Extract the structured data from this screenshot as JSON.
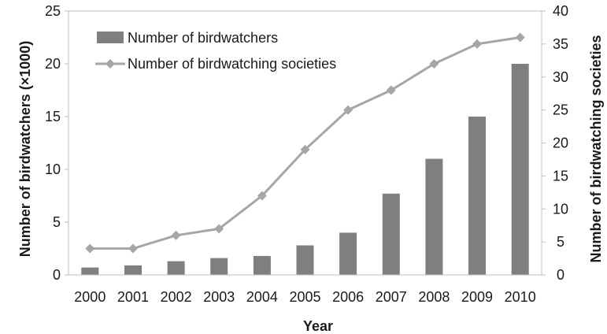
{
  "chart_data": {
    "type": "bar",
    "categories": [
      "2000",
      "2001",
      "2002",
      "2003",
      "2004",
      "2005",
      "2006",
      "2007",
      "2008",
      "2009",
      "2010"
    ],
    "xlabel": "Year",
    "y_left": {
      "label": "Number of birdwatchers (×1000)",
      "range": [
        0,
        25
      ],
      "ticks": [
        "0",
        "5",
        "10",
        "15",
        "20",
        "25"
      ]
    },
    "y_right": {
      "label": "Number of birdwatching societies",
      "range": [
        0,
        40
      ],
      "ticks": [
        "0",
        "5",
        "10",
        "15",
        "20",
        "25",
        "30",
        "35",
        "40"
      ]
    },
    "series": [
      {
        "name": "Number of birdwatchers",
        "type": "bar",
        "axis": "left",
        "color": "#7f7f7f",
        "values": [
          0.7,
          0.9,
          1.3,
          1.6,
          1.8,
          2.8,
          4.0,
          7.7,
          11.0,
          15.0,
          20.0
        ]
      },
      {
        "name": "Number of birdwatching societies",
        "type": "line",
        "axis": "right",
        "color": "#a6a6a6",
        "marker": "diamond",
        "values": [
          4,
          4,
          6,
          7,
          12,
          19,
          25,
          28,
          32,
          35,
          36
        ]
      }
    ],
    "legend": "top-left",
    "grid": false
  }
}
